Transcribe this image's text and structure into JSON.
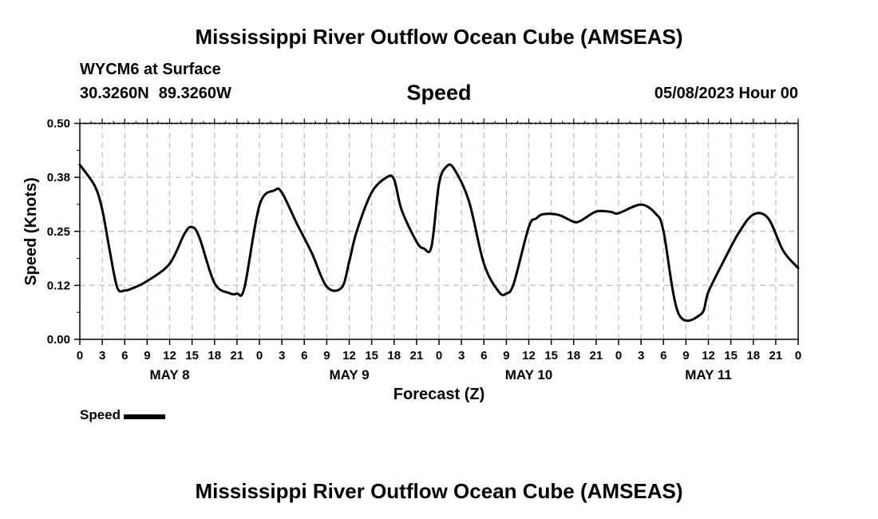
{
  "header": {
    "title": "Mississippi River Outflow Ocean Cube (AMSEAS)",
    "station": "WYCM6 at Surface",
    "lat": "30.3260N",
    "lon": "89.3260W",
    "variable": "Speed",
    "valid_time": "05/08/2023 Hour 00"
  },
  "footer": {
    "title": "Mississippi River Outflow Ocean Cube (AMSEAS)"
  },
  "legend": {
    "label": "Speed",
    "color": "#000000"
  },
  "chart_data": {
    "type": "line",
    "title": "Speed",
    "xlabel": "Forecast (Z)",
    "ylabel": "Speed (Knots)",
    "xlim": [
      0,
      96
    ],
    "ylim": [
      0,
      0.5
    ],
    "yticks": [
      0,
      0.125,
      0.25,
      0.375,
      0.5
    ],
    "ytick_labels": [
      "0.00",
      "0.12",
      "0.25",
      "0.38",
      "0.50"
    ],
    "xtick_labels": [
      "0",
      "3",
      "6",
      "9",
      "12",
      "15",
      "18",
      "21",
      "0",
      "3",
      "6",
      "9",
      "12",
      "15",
      "18",
      "21",
      "0",
      "3",
      "6",
      "9",
      "12",
      "15",
      "18",
      "21",
      "0",
      "3",
      "6",
      "9",
      "12",
      "15",
      "18",
      "21",
      "0"
    ],
    "day_labels": [
      {
        "label": "MAY 8",
        "hour": 12
      },
      {
        "label": "MAY 9",
        "hour": 36
      },
      {
        "label": "MAY 10",
        "hour": 60
      },
      {
        "label": "MAY 11",
        "hour": 84
      }
    ],
    "grid": true,
    "series": [
      {
        "name": "Speed",
        "color": "#000000",
        "x": [
          0,
          2,
          3,
          4,
          5,
          6,
          7,
          9,
          12,
          14,
          15,
          16,
          18,
          20,
          21,
          22,
          24,
          26,
          27,
          29,
          31,
          33,
          35,
          36,
          37,
          39,
          41,
          42,
          43,
          45,
          46,
          47,
          48,
          49,
          50,
          52,
          54,
          56,
          57,
          58,
          60,
          61,
          62,
          64,
          66,
          67,
          69,
          71,
          72,
          75,
          77,
          78,
          80,
          83,
          84,
          86,
          88,
          90,
          92,
          94,
          96
        ],
        "y": [
          0.404,
          0.355,
          0.3,
          0.205,
          0.12,
          0.113,
          0.118,
          0.135,
          0.175,
          0.245,
          0.26,
          0.235,
          0.13,
          0.107,
          0.106,
          0.12,
          0.31,
          0.345,
          0.34,
          0.268,
          0.2,
          0.122,
          0.12,
          0.18,
          0.25,
          0.34,
          0.375,
          0.37,
          0.3,
          0.226,
          0.21,
          0.215,
          0.36,
          0.4,
          0.395,
          0.32,
          0.175,
          0.11,
          0.106,
          0.13,
          0.26,
          0.28,
          0.29,
          0.288,
          0.272,
          0.275,
          0.296,
          0.295,
          0.292,
          0.312,
          0.29,
          0.25,
          0.06,
          0.058,
          0.11,
          0.18,
          0.245,
          0.289,
          0.28,
          0.205,
          0.165
        ]
      }
    ]
  }
}
